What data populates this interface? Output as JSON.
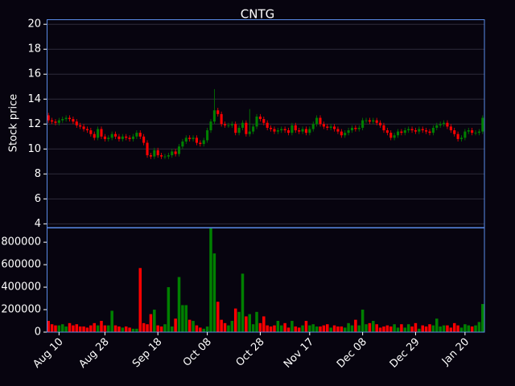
{
  "chart_data": {
    "type": "candlestick",
    "title": "CNTG",
    "ylabel": "Stock price",
    "up_color": "#008000",
    "down_color": "#ff0000",
    "grid": true,
    "categories": [
      null,
      null,
      null,
      "Aug 10",
      null,
      null,
      null,
      null,
      null,
      null,
      null,
      null,
      null,
      null,
      null,
      null,
      "Aug 28",
      null,
      null,
      null,
      null,
      null,
      null,
      null,
      null,
      null,
      null,
      null,
      null,
      null,
      null,
      "Sep 18",
      null,
      null,
      null,
      null,
      null,
      null,
      null,
      null,
      null,
      null,
      null,
      null,
      null,
      "Oct 08",
      null,
      null,
      null,
      null,
      null,
      null,
      null,
      null,
      null,
      null,
      null,
      null,
      null,
      null,
      "Oct 28",
      null,
      null,
      null,
      null,
      null,
      null,
      null,
      null,
      null,
      null,
      null,
      null,
      null,
      "Nov 17",
      null,
      null,
      null,
      null,
      null,
      null,
      null,
      null,
      null,
      null,
      null,
      null,
      null,
      null,
      "Dec 08",
      null,
      null,
      null,
      null,
      null,
      null,
      null,
      null,
      null,
      null,
      null,
      null,
      null,
      null,
      "Dec 29",
      null,
      null,
      null,
      null,
      null,
      null,
      null,
      null,
      null,
      null,
      null,
      null,
      null,
      "Jan 20",
      null,
      null,
      null,
      null,
      null
    ],
    "open": [
      12.7,
      12.3,
      12.2,
      12.1,
      12.3,
      12.4,
      12.5,
      12.4,
      12.2,
      11.9,
      11.8,
      11.6,
      11.5,
      11.2,
      10.9,
      11.6,
      11.0,
      10.8,
      10.9,
      11.2,
      11.0,
      10.8,
      11.0,
      10.9,
      10.8,
      11.0,
      11.3,
      11.0,
      10.5,
      9.5,
      9.4,
      9.9,
      9.5,
      9.4,
      9.4,
      9.5,
      9.8,
      9.6,
      10.2,
      10.6,
      10.9,
      10.8,
      10.9,
      10.5,
      10.4,
      10.7,
      11.5,
      12.2,
      13.1,
      12.8,
      12.0,
      11.9,
      11.9,
      12.0,
      11.3,
      11.7,
      12.1,
      11.2,
      11.4,
      11.8,
      12.6,
      12.4,
      12.1,
      11.7,
      11.6,
      11.4,
      11.5,
      11.6,
      11.5,
      11.3,
      11.9,
      11.5,
      11.4,
      11.6,
      11.3,
      11.6,
      12.0,
      12.5,
      12.0,
      11.8,
      11.7,
      11.8,
      11.6,
      11.4,
      11.1,
      11.3,
      11.5,
      11.7,
      11.6,
      11.7,
      12.3,
      12.3,
      12.2,
      12.3,
      12.1,
      11.9,
      11.5,
      11.3,
      10.9,
      11.1,
      11.4,
      11.3,
      11.5,
      11.6,
      11.5,
      11.4,
      11.6,
      11.5,
      11.4,
      11.3,
      11.7,
      11.9,
      12.0,
      12.1,
      11.8,
      11.5,
      11.2,
      10.8,
      10.9,
      11.4,
      11.5,
      11.3,
      11.3,
      11.4
    ],
    "high": [
      12.9,
      12.5,
      12.4,
      12.5,
      12.6,
      12.7,
      12.7,
      12.6,
      12.4,
      12.1,
      12.0,
      11.8,
      11.7,
      11.4,
      11.8,
      11.8,
      11.2,
      11.1,
      11.4,
      11.4,
      11.2,
      11.2,
      11.2,
      11.1,
      11.2,
      11.5,
      11.5,
      11.2,
      10.7,
      9.7,
      10.1,
      10.1,
      9.7,
      9.6,
      9.7,
      10.0,
      10.0,
      10.4,
      10.8,
      11.1,
      11.1,
      11.1,
      11.1,
      10.7,
      10.9,
      11.7,
      12.4,
      14.8,
      13.3,
      13.0,
      12.2,
      12.1,
      12.2,
      12.2,
      11.9,
      12.3,
      12.3,
      13.2,
      12.0,
      12.8,
      12.8,
      12.6,
      12.3,
      11.9,
      11.8,
      11.7,
      11.8,
      11.8,
      11.7,
      12.1,
      12.1,
      11.7,
      11.8,
      11.8,
      11.8,
      12.2,
      12.7,
      12.7,
      12.2,
      12.0,
      12.0,
      12.0,
      11.8,
      11.6,
      11.5,
      11.7,
      11.9,
      11.9,
      11.9,
      12.5,
      12.5,
      12.5,
      12.5,
      12.5,
      12.3,
      12.1,
      11.7,
      11.5,
      11.3,
      11.6,
      11.6,
      11.7,
      11.8,
      11.8,
      11.7,
      11.8,
      11.8,
      11.7,
      11.6,
      11.9,
      12.1,
      12.2,
      12.3,
      12.3,
      12.0,
      11.7,
      11.4,
      11.1,
      11.6,
      11.7,
      11.7,
      11.5,
      11.6,
      12.7
    ],
    "low": [
      12.1,
      12.0,
      11.9,
      11.9,
      12.1,
      12.2,
      12.2,
      12.0,
      11.7,
      11.6,
      11.4,
      11.3,
      11.0,
      10.7,
      10.7,
      10.8,
      10.6,
      10.6,
      10.7,
      10.8,
      10.6,
      10.6,
      10.7,
      10.6,
      10.6,
      10.8,
      10.8,
      10.3,
      9.3,
      9.2,
      9.2,
      9.3,
      9.2,
      9.2,
      9.2,
      9.3,
      9.4,
      9.4,
      10.0,
      10.4,
      10.6,
      10.6,
      10.3,
      10.2,
      10.2,
      10.5,
      11.3,
      12.0,
      12.6,
      11.8,
      11.7,
      11.7,
      11.7,
      11.1,
      11.1,
      11.5,
      11.0,
      11.0,
      11.2,
      11.6,
      12.2,
      11.9,
      11.5,
      11.4,
      11.2,
      11.2,
      11.3,
      11.3,
      11.1,
      11.1,
      11.3,
      11.2,
      11.2,
      11.1,
      11.1,
      11.4,
      11.8,
      11.8,
      11.6,
      11.5,
      11.5,
      11.4,
      11.2,
      10.9,
      10.9,
      11.1,
      11.3,
      11.4,
      11.4,
      11.5,
      12.1,
      12.0,
      12.0,
      11.9,
      11.7,
      11.3,
      11.1,
      10.7,
      10.7,
      10.9,
      11.1,
      11.1,
      11.3,
      11.3,
      11.2,
      11.2,
      11.3,
      11.2,
      11.1,
      11.1,
      11.5,
      11.7,
      11.8,
      11.6,
      11.3,
      11.0,
      10.6,
      10.6,
      10.7,
      11.2,
      11.1,
      11.1,
      11.1,
      11.2
    ],
    "close": [
      12.3,
      12.2,
      12.1,
      12.3,
      12.4,
      12.5,
      12.4,
      12.2,
      11.9,
      11.8,
      11.6,
      11.5,
      11.2,
      10.9,
      11.6,
      11.0,
      10.8,
      10.9,
      11.2,
      11.0,
      10.8,
      11.0,
      10.9,
      10.8,
      11.0,
      11.3,
      11.0,
      10.5,
      9.5,
      9.4,
      9.9,
      9.5,
      9.4,
      9.4,
      9.5,
      9.8,
      9.6,
      10.2,
      10.6,
      10.9,
      10.8,
      10.9,
      10.5,
      10.4,
      10.7,
      11.5,
      12.2,
      13.1,
      12.8,
      12.0,
      11.9,
      11.9,
      12.0,
      11.3,
      11.7,
      12.1,
      11.2,
      11.4,
      11.8,
      12.6,
      12.4,
      12.1,
      11.7,
      11.6,
      11.4,
      11.5,
      11.6,
      11.5,
      11.3,
      11.9,
      11.5,
      11.4,
      11.6,
      11.3,
      11.6,
      12.0,
      12.5,
      12.0,
      11.8,
      11.7,
      11.8,
      11.6,
      11.4,
      11.1,
      11.3,
      11.5,
      11.7,
      11.6,
      11.7,
      12.3,
      12.3,
      12.2,
      12.3,
      12.1,
      11.9,
      11.5,
      11.3,
      10.9,
      11.1,
      11.4,
      11.3,
      11.5,
      11.6,
      11.5,
      11.4,
      11.6,
      11.5,
      11.4,
      11.3,
      11.7,
      11.9,
      12.0,
      12.1,
      11.8,
      11.5,
      11.2,
      10.8,
      10.9,
      11.4,
      11.5,
      11.3,
      11.3,
      11.4,
      12.5
    ],
    "volume": [
      100000,
      70000,
      60000,
      60000,
      70000,
      50000,
      80000,
      60000,
      70000,
      50000,
      50000,
      40000,
      60000,
      80000,
      60000,
      100000,
      60000,
      60000,
      190000,
      60000,
      50000,
      40000,
      50000,
      40000,
      30000,
      30000,
      570000,
      80000,
      70000,
      160000,
      200000,
      60000,
      50000,
      70000,
      400000,
      50000,
      120000,
      490000,
      240000,
      240000,
      110000,
      100000,
      60000,
      40000,
      30000,
      50000,
      930000,
      700000,
      270000,
      110000,
      80000,
      60000,
      100000,
      210000,
      180000,
      520000,
      140000,
      160000,
      70000,
      180000,
      80000,
      140000,
      60000,
      50000,
      60000,
      100000,
      60000,
      80000,
      40000,
      100000,
      50000,
      40000,
      60000,
      100000,
      60000,
      70000,
      50000,
      50000,
      60000,
      70000,
      40000,
      60000,
      50000,
      50000,
      40000,
      80000,
      60000,
      110000,
      60000,
      200000,
      70000,
      80000,
      100000,
      70000,
      40000,
      50000,
      60000,
      50000,
      70000,
      40000,
      70000,
      40000,
      70000,
      50000,
      80000,
      30000,
      60000,
      50000,
      70000,
      60000,
      120000,
      50000,
      60000,
      60000,
      40000,
      80000,
      60000,
      40000,
      70000,
      60000,
      50000,
      60000,
      90000,
      250000
    ],
    "ylim": [
      3.7,
      20.4
    ],
    "yticks": [
      4,
      6,
      8,
      10,
      12,
      14,
      16,
      18,
      20
    ],
    "volume_ylim": [
      0,
      930000
    ],
    "volume_yticks": [
      0,
      200000,
      400000,
      600000,
      800000
    ]
  }
}
